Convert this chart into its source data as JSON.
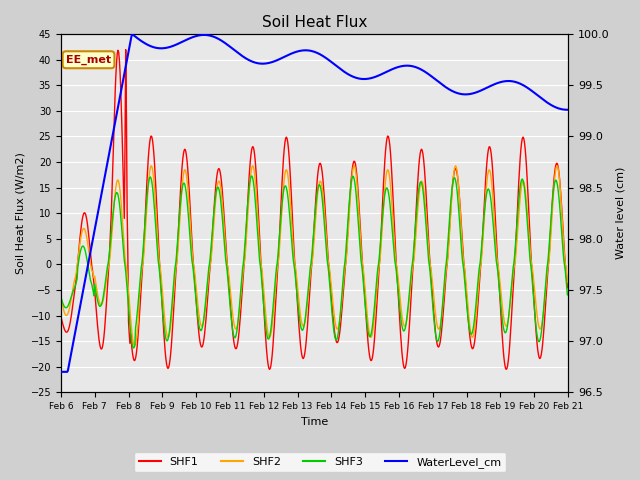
{
  "title": "Soil Heat Flux",
  "xlabel": "Time",
  "ylabel_left": "Soil Heat Flux (W/m2)",
  "ylabel_right": "Water level (cm)",
  "ylim_left": [
    -25,
    45
  ],
  "ylim_right": [
    96.5,
    100.0
  ],
  "yticks_left": [
    -25,
    -20,
    -15,
    -10,
    -5,
    0,
    5,
    10,
    15,
    20,
    25,
    30,
    35,
    40,
    45
  ],
  "yticks_right": [
    96.5,
    97.0,
    97.5,
    98.0,
    98.5,
    99.0,
    99.5,
    100.0
  ],
  "fig_bg_color": "#d0d0d0",
  "plot_bg_color": "#e8e8e8",
  "grid_color": "#ffffff",
  "annotation_text": "EE_met",
  "annotation_bg": "#ffffcc",
  "annotation_border": "#cc8800",
  "colors": {
    "SHF1": "#ff0000",
    "SHF2": "#ffa500",
    "SHF3": "#00cc00",
    "WaterLevel_cm": "#0000ff"
  },
  "legend_labels": [
    "SHF1",
    "SHF2",
    "SHF3",
    "WaterLevel_cm"
  ],
  "xtick_labels": [
    "Feb 6",
    "Feb 7",
    "Feb 8",
    "Feb 9",
    "Feb 10",
    "Feb 11",
    "Feb 12",
    "Feb 13",
    "Feb 14",
    "Feb 15",
    "Feb 16",
    "Feb 17",
    "Feb 18",
    "Feb 19",
    "Feb 20",
    "Feb 21"
  ]
}
